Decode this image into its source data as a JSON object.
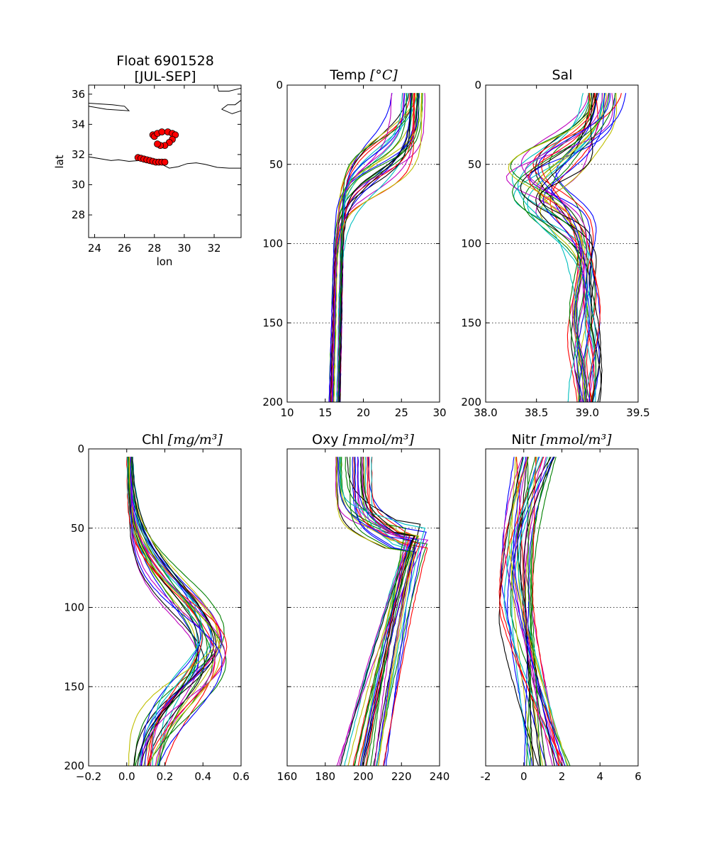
{
  "figure": {
    "title_line1": "Float 6901528",
    "title_line2": "[JUL-SEP]"
  },
  "map": {
    "xlabel": "lon",
    "ylabel": "lat",
    "xlim": [
      23.6,
      33.8
    ],
    "ylim": [
      26.5,
      36.6
    ],
    "xticks": [
      24,
      26,
      28,
      30,
      32
    ],
    "yticks": [
      28,
      30,
      32,
      34,
      36
    ],
    "marker_color": "#ff0000",
    "positions": [
      [
        27.9,
        33.3
      ],
      [
        28.0,
        33.2
      ],
      [
        28.2,
        33.4
      ],
      [
        28.5,
        33.5
      ],
      [
        28.9,
        33.5
      ],
      [
        29.2,
        33.4
      ],
      [
        29.4,
        33.3
      ],
      [
        29.2,
        33.0
      ],
      [
        29.0,
        32.8
      ],
      [
        28.7,
        32.6
      ],
      [
        28.4,
        32.6
      ],
      [
        28.2,
        32.7
      ],
      [
        26.9,
        31.8
      ],
      [
        27.1,
        31.75
      ],
      [
        27.3,
        31.7
      ],
      [
        27.5,
        31.65
      ],
      [
        27.7,
        31.6
      ],
      [
        27.9,
        31.55
      ],
      [
        28.1,
        31.5
      ],
      [
        28.3,
        31.5
      ],
      [
        28.5,
        31.5
      ],
      [
        28.7,
        31.5
      ]
    ]
  },
  "chart_data": [
    {
      "panel": "temp",
      "type": "line",
      "title": "Temp",
      "unit": "[°C]",
      "xlim": [
        10,
        30
      ],
      "ylim": [
        200,
        0
      ],
      "xticks": [
        10,
        15,
        20,
        25,
        30
      ],
      "yticks": [
        0,
        50,
        100,
        150,
        200
      ],
      "shape": "mixed-layer",
      "surface_range": [
        23,
        28
      ],
      "thermocline_depth_range": [
        30,
        70
      ],
      "deep_value_range": [
        15.5,
        17
      ],
      "grid_y": [
        50,
        100,
        150
      ],
      "series_count": 30
    },
    {
      "panel": "sal",
      "type": "line",
      "title": "Sal",
      "unit": "",
      "xlim": [
        38.0,
        39.5
      ],
      "ylim": [
        200,
        0
      ],
      "xticks": [
        "38.0",
        "38.5",
        "39.0",
        "39.5"
      ],
      "yticks": [
        0,
        50,
        100,
        150,
        200
      ],
      "shape": "salinity-minimum",
      "surface_range": [
        38.9,
        39.35
      ],
      "minimum_range": [
        38.2,
        38.7
      ],
      "deep_value_range": [
        38.85,
        39.1
      ],
      "grid_y": [
        50,
        100,
        150
      ],
      "series_count": 30
    },
    {
      "panel": "chl",
      "type": "line",
      "title": "Chl",
      "unit": "[mg/m³]",
      "xlim": [
        -0.2,
        0.6
      ],
      "ylim": [
        200,
        0
      ],
      "xticks": [
        "−0.2",
        "0.0",
        "0.2",
        "0.4",
        "0.6"
      ],
      "yticks": [
        0,
        50,
        100,
        150,
        200
      ],
      "shape": "deep-chlorophyll-maximum",
      "surface_range": [
        0.0,
        0.03
      ],
      "peak_value_range": [
        0.35,
        0.53
      ],
      "peak_depth_range": [
        115,
        135
      ],
      "deep_value_range": [
        0.0,
        0.2
      ],
      "grid_y": [
        50,
        100,
        150
      ],
      "series_count": 30
    },
    {
      "panel": "oxy",
      "type": "line",
      "title": "Oxy",
      "unit": "[mmol/m³]",
      "xlim": [
        160,
        240
      ],
      "ylim": [
        200,
        0
      ],
      "xticks": [
        160,
        180,
        200,
        220,
        240
      ],
      "yticks": [],
      "shape": "subsurface-maximum",
      "surface_range": [
        185,
        205
      ],
      "peak_value_range": [
        222,
        235
      ],
      "peak_depth_range": [
        45,
        65
      ],
      "deep_value_range": [
        186,
        212
      ],
      "grid_y": [
        50,
        100,
        150
      ],
      "series_count": 30
    },
    {
      "panel": "nitr",
      "type": "line",
      "title": "Nitr",
      "unit": "[mmol/m³]",
      "xlim": [
        -2,
        6
      ],
      "ylim": [
        200,
        0
      ],
      "xticks": [
        -2,
        0,
        2,
        4,
        6
      ],
      "yticks": [],
      "shape": "nitracline",
      "surface_range": [
        -0.5,
        2.0
      ],
      "mid_range": [
        -1.3,
        0.5
      ],
      "deep_value_range": [
        0.0,
        2.5
      ],
      "grid_y": [
        50,
        100,
        150
      ],
      "series_count": 30
    }
  ],
  "series_colors": [
    "#0000ff",
    "#008000",
    "#ff0000",
    "#00bfbf",
    "#bf00bf",
    "#bfbf00",
    "#000000"
  ]
}
